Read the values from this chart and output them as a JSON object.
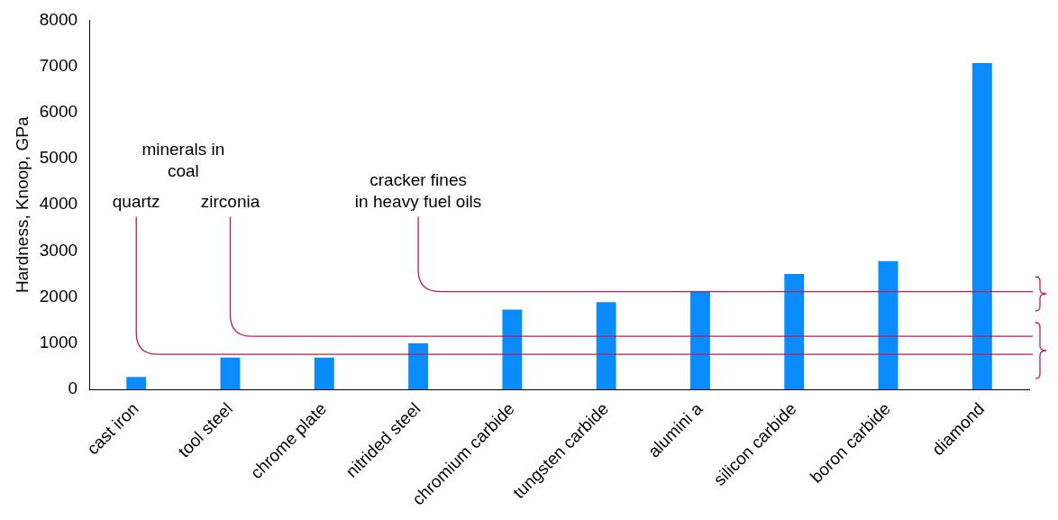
{
  "chart_data": {
    "type": "bar",
    "ylabel": "Hardness, Knoop, GPa",
    "categories": [
      "cast iron",
      "tool steel",
      "chrome plate",
      "nitrided steel",
      "chromium carbide",
      "tungsten carbide",
      "alumini a",
      "silicon carbide",
      "boron carbide",
      "diamond"
    ],
    "values": [
      270,
      690,
      690,
      1000,
      1730,
      1890,
      2130,
      2500,
      2780,
      7070
    ],
    "color": "#0a8cff",
    "ylim": [
      0,
      8000
    ],
    "yticks": [
      0,
      1000,
      2000,
      3000,
      4000,
      5000,
      6000,
      7000,
      8000
    ],
    "grid": false,
    "annotations": [
      "minerals in coal"
    ],
    "ref_lines": [
      {
        "axis": "y",
        "value": 760,
        "label": "quartz",
        "color": "#c8184a"
      },
      {
        "axis": "y",
        "value": 1150,
        "label": "zirconia",
        "color": "#c8184a"
      },
      {
        "axis": "y",
        "value": 2120,
        "label": "cracker fines\nin heavy fuel oils",
        "color": "#c8184a"
      }
    ]
  }
}
